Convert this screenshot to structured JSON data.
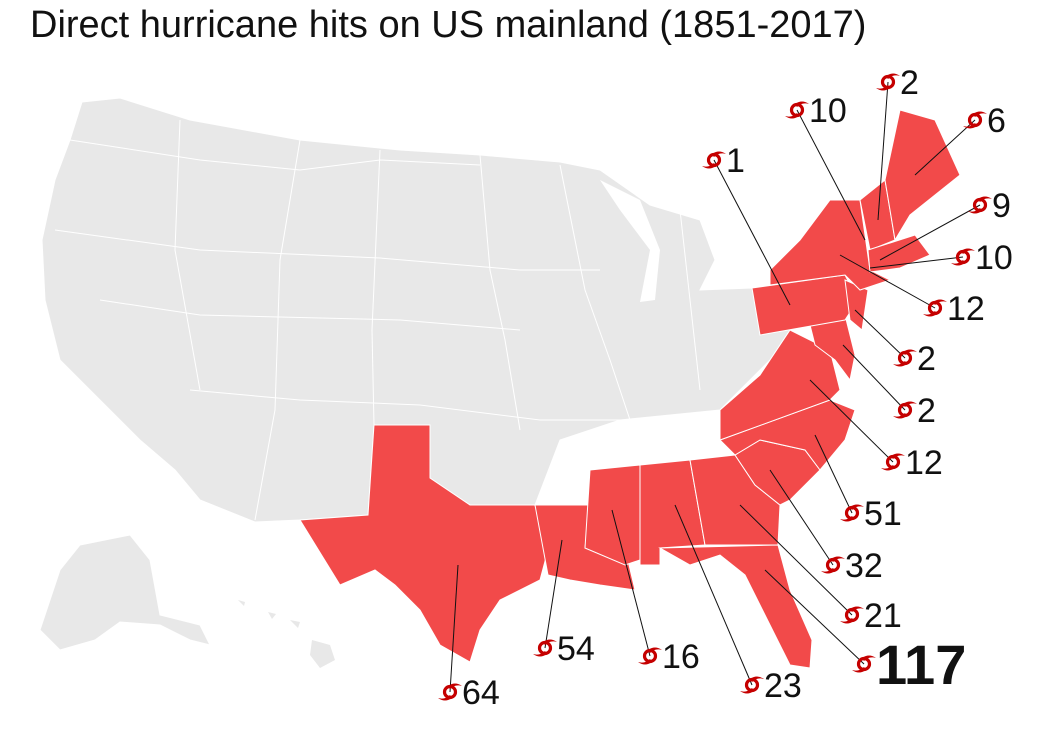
{
  "title": "Direct hurricane hits on US mainland (1851-2017)",
  "colors": {
    "hit_state": "#f24a4a",
    "non_hit_state": "#e8e8e8",
    "border": "#ffffff",
    "leader_line": "#111111",
    "hurricane_icon": "#c50000"
  },
  "legend_icon": "hurricane-icon",
  "states": [
    {
      "state": "Maine",
      "hits": "6"
    },
    {
      "state": "New Hampshire",
      "hits": "2"
    },
    {
      "state": "Vermont",
      "hits": "10"
    },
    {
      "state": "Massachusetts",
      "hits": "9"
    },
    {
      "state": "Connecticut",
      "hits": "10"
    },
    {
      "state": "New York",
      "hits": "12"
    },
    {
      "state": "Pennsylvania",
      "hits": "1"
    },
    {
      "state": "New Jersey",
      "hits": "2"
    },
    {
      "state": "Delaware",
      "hits": "2"
    },
    {
      "state": "Virginia",
      "hits": "12"
    },
    {
      "state": "North Carolina",
      "hits": "51"
    },
    {
      "state": "South Carolina",
      "hits": "32"
    },
    {
      "state": "Georgia",
      "hits": "21"
    },
    {
      "state": "Florida",
      "hits": "117"
    },
    {
      "state": "Alabama",
      "hits": "23"
    },
    {
      "state": "Mississippi",
      "hits": "16"
    },
    {
      "state": "Louisiana",
      "hits": "54"
    },
    {
      "state": "Texas",
      "hits": "64"
    }
  ]
}
